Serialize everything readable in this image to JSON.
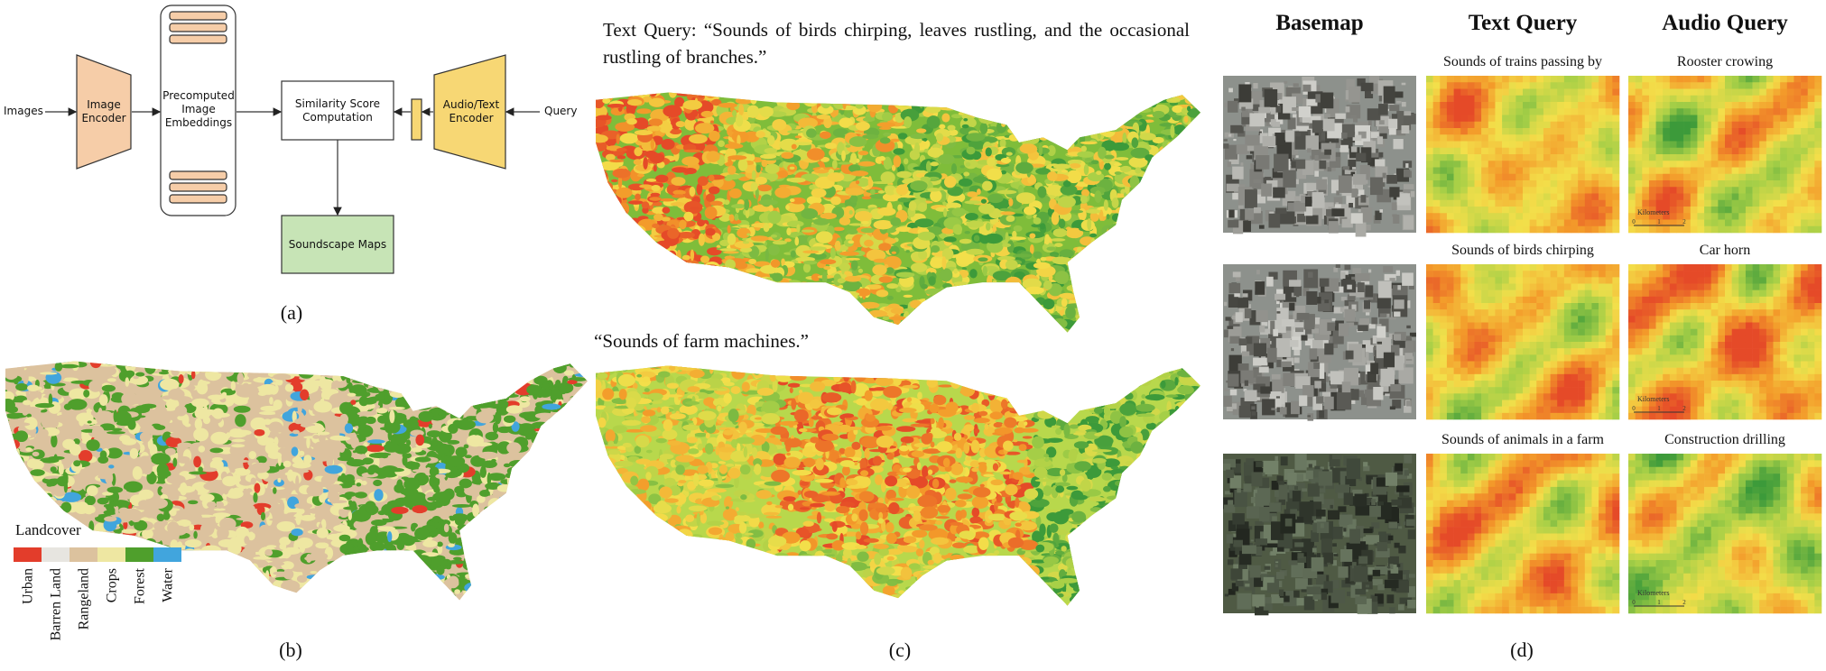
{
  "panel_a": {
    "images_input": "Images",
    "image_encoder": "Image Encoder",
    "embeddings": "Precomputed Image Embeddings",
    "similarity": "Similarity Score Computation",
    "audio_text_encoder": "Audio/Text Encoder",
    "query_input": "Query",
    "output": "Soundscape Maps",
    "caption": "(a)"
  },
  "panel_b": {
    "legend_title": "Landcover",
    "legend": [
      {
        "label": "Urban",
        "color": "#e33d2b"
      },
      {
        "label": "Barren Land",
        "color": "#e7e5e0"
      },
      {
        "label": "Rangeland",
        "color": "#dcc29e"
      },
      {
        "label": "Crops",
        "color": "#eee7a2"
      },
      {
        "label": "Forest",
        "color": "#4f9f2c"
      },
      {
        "label": "Water",
        "color": "#41a5dd"
      }
    ],
    "caption": "(b)"
  },
  "panel_c": {
    "query_1": "Text Query: “Sounds of birds chirping, leaves rustling, and the occasional rustling of branches.”",
    "query_2": "“Sounds of farm machines.”",
    "caption": "(c)"
  },
  "panel_d": {
    "headers": [
      "Basemap",
      "Text Query",
      "Audio Query"
    ],
    "rows": [
      {
        "text_query": "Sounds of trains passing by",
        "audio_query": "Rooster crowing"
      },
      {
        "text_query": "Sounds of birds chirping",
        "audio_query": "Car horn"
      },
      {
        "text_query": "Sounds of animals in a farm",
        "audio_query": "Construction drilling"
      }
    ],
    "scale_bar": {
      "label": "Kilometers",
      "ticks": [
        "0",
        "1",
        "2"
      ]
    },
    "caption": "(d)"
  }
}
